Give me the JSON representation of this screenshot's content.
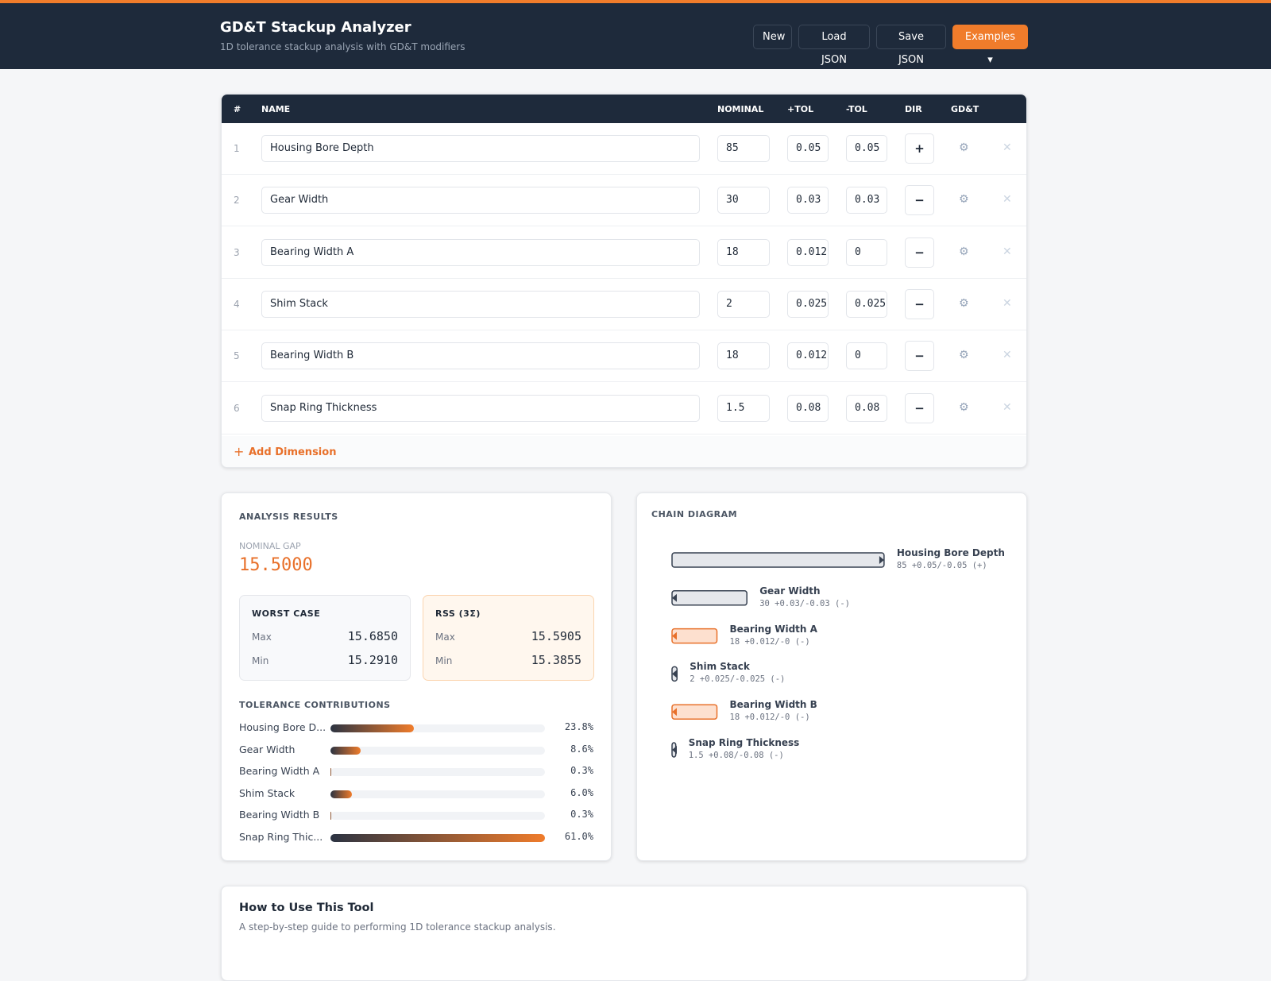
{
  "header": {
    "title": "GD&T Stackup Analyzer",
    "subtitle": "1D tolerance stackup analysis with GD&T modifiers",
    "buttons": [
      "New",
      "Load JSON",
      "Save JSON",
      "Examples"
    ]
  },
  "table": {
    "columns": [
      "#",
      "NAME",
      "NOMINAL",
      "+TOL",
      "-TOL",
      "DIR",
      "GD&T"
    ],
    "rows": [
      {
        "index": 1,
        "name": "Housing Bore Depth",
        "nominal": 85,
        "plus_tol": "0.05",
        "minus_tol": "0.05",
        "dir": "+"
      },
      {
        "index": 2,
        "name": "Gear Width",
        "nominal": 30,
        "plus_tol": "0.03",
        "minus_tol": "0.03",
        "dir": "−"
      },
      {
        "index": 3,
        "name": "Bearing Width A",
        "nominal": 18,
        "plus_tol": "0.012",
        "minus_tol": "0",
        "dir": "−"
      },
      {
        "index": 4,
        "name": "Shim Stack",
        "nominal": 2,
        "plus_tol": "0.025",
        "minus_tol": "0.025",
        "dir": "−"
      },
      {
        "index": 5,
        "name": "Bearing Width B",
        "nominal": 18,
        "plus_tol": "0.012",
        "minus_tol": "0",
        "dir": "−"
      },
      {
        "index": 6,
        "name": "Snap Ring Thickness",
        "nominal": 1.5,
        "plus_tol": "0.08",
        "minus_tol": "0.08",
        "dir": "−"
      }
    ],
    "add_button": "Add Dimension"
  },
  "results": {
    "title": "ANALYSIS RESULTS",
    "nominal_gap_label": "NOMINAL GAP",
    "nominal_gap": "15.5000",
    "worst_case": {
      "title": "WORST CASE",
      "max_label": "Max",
      "max": "15.6850",
      "min_label": "Min",
      "min": "15.2910"
    },
    "rss": {
      "title": "RSS (3Σ)",
      "max_label": "Max",
      "max": "15.5905",
      "min_label": "Min",
      "min": "15.3855"
    },
    "contributions_title": "TOLERANCE CONTRIBUTIONS",
    "contributions": [
      {
        "name": "Housing Bore D...",
        "value": 23.8,
        "value_label": "23.8%"
      },
      {
        "name": "Gear Width",
        "value": 8.6,
        "value_label": "8.6%"
      },
      {
        "name": "Bearing Width A",
        "value": 0.3,
        "value_label": "0.3%"
      },
      {
        "name": "Shim Stack",
        "value": 6.0,
        "value_label": "6.0%"
      },
      {
        "name": "Bearing Width B",
        "value": 0.3,
        "value_label": "0.3%"
      },
      {
        "name": "Snap Ring Thic...",
        "value": 61.0,
        "value_label": "61.0%"
      }
    ]
  },
  "chain": {
    "title": "CHAIN DIAGRAM",
    "items": [
      {
        "name": "Housing Bore Depth",
        "detail": "85 +0.05/-0.05 (+)",
        "color": "#e5e7eb"
      },
      {
        "name": "Gear Width",
        "detail": "30 +0.03/-0.03 (-)",
        "color": "#e5e7eb"
      },
      {
        "name": "Bearing Width A",
        "detail": "18 +0.012/-0 (-)",
        "color": "#fde0cf"
      },
      {
        "name": "Shim Stack",
        "detail": "2 +0.025/-0.025 (-)",
        "color": "#e5e7eb"
      },
      {
        "name": "Bearing Width B",
        "detail": "18 +0.012/-0 (-)",
        "color": "#fde0cf"
      },
      {
        "name": "Snap Ring Thickness",
        "detail": "1.5 +0.08/-0.08 (-)",
        "color": "#e5e7eb"
      }
    ]
  },
  "guide": {
    "title": "How to Use This Tool",
    "subtitle": "A step-by-step guide to performing 1D tolerance stackup analysis."
  }
}
